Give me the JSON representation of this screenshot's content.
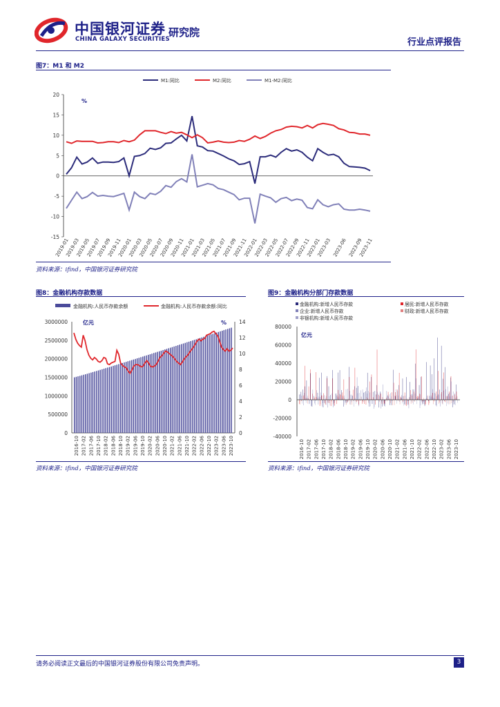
{
  "header": {
    "company_cn": "中国银河证券",
    "company_en": "CHINA GALAXY SECURITIES",
    "institute": "研究院",
    "report_type": "行业点评报告"
  },
  "figures": {
    "fig7": {
      "title": "图7：M1 和 M2",
      "source": "资料来源：ifind，中国银河证券研究院"
    },
    "fig8": {
      "title": "图8：金融机构存款数据",
      "source": "资料来源：ifind，中国银河证券研究院"
    },
    "fig9": {
      "title": "图9：金融机构分部门存款数据",
      "source": "资料来源：ifind，中国银河证券研究院"
    }
  },
  "footer": {
    "disclaimer": "请务必阅读正文最后的中国银河证券股份有限公司免责声明。",
    "page": "3"
  },
  "colors": {
    "navy": "#2b2b7a",
    "red": "#e0262b",
    "purple": "#8080b8",
    "brand": "#1d2088"
  },
  "chart_data": [
    {
      "id": "fig7",
      "type": "line",
      "unit": "%",
      "x": [
        "2019-01",
        "2019-02",
        "2019-03",
        "2019-04",
        "2019-05",
        "2019-06",
        "2019-07",
        "2019-08",
        "2019-09",
        "2019-10",
        "2019-11",
        "2019-12",
        "2020-01",
        "2020-02",
        "2020-03",
        "2020-04",
        "2020-05",
        "2020-06",
        "2020-07",
        "2020-08",
        "2020-09",
        "2020-10",
        "2020-11",
        "2020-12",
        "2021-01",
        "2021-02",
        "2021-03",
        "2021-04",
        "2021-05",
        "2021-06",
        "2021-07",
        "2021-08",
        "2021-09",
        "2021-10",
        "2021-11",
        "2021-12",
        "2022-01",
        "2022-02",
        "2022-03",
        "2022-04",
        "2022-05",
        "2022-06",
        "2022-07",
        "2022-08",
        "2022-09",
        "2022-10",
        "2022-11",
        "2022-12",
        "2023-01",
        "2023-02",
        "2023-03",
        "2023-04",
        "2023-05",
        "2023-06",
        "2023-07",
        "2023-08",
        "2023-09",
        "2023-10",
        "2023-11"
      ],
      "tick_labels": [
        "2019-01",
        "2019-03",
        "2019-05",
        "2019-07",
        "2019-09",
        "2019-11",
        "2020-01",
        "2020-03",
        "2020-05",
        "2020-07",
        "2020-09",
        "2020-11",
        "2021-01",
        "2021-03",
        "2021-05",
        "2021-07",
        "2021-09",
        "2021-11",
        "2022-01",
        "2022-03",
        "2022-05",
        "2022-07",
        "2022-09",
        "2022-11",
        "2023-01",
        "2023-03",
        "2023-06",
        "2023-09",
        "2023-11"
      ],
      "series": [
        {
          "name": "M1:同比",
          "color": "#2b2b7a",
          "values": [
            0.4,
            2.0,
            4.6,
            2.9,
            3.4,
            4.4,
            3.1,
            3.4,
            3.4,
            3.3,
            3.5,
            4.4,
            0.0,
            4.8,
            5.0,
            5.5,
            6.8,
            6.5,
            6.9,
            8.0,
            8.1,
            9.1,
            10.0,
            8.6,
            14.7,
            7.4,
            7.1,
            6.2,
            6.1,
            5.5,
            4.9,
            4.2,
            3.7,
            2.8,
            3.0,
            3.5,
            -1.9,
            4.7,
            4.7,
            5.1,
            4.6,
            5.8,
            6.7,
            6.1,
            6.4,
            5.8,
            4.6,
            3.7,
            6.7,
            5.8,
            5.1,
            5.3,
            4.7,
            3.1,
            2.3,
            2.2,
            2.1,
            1.9,
            1.3
          ]
        },
        {
          "name": "M2:同比",
          "color": "#e0262b",
          "values": [
            8.4,
            8.0,
            8.6,
            8.5,
            8.5,
            8.5,
            8.1,
            8.2,
            8.4,
            8.4,
            8.2,
            8.7,
            8.4,
            8.8,
            10.1,
            11.1,
            11.1,
            11.1,
            10.7,
            10.4,
            10.9,
            10.5,
            10.7,
            10.1,
            9.4,
            10.1,
            9.4,
            8.1,
            8.3,
            8.6,
            8.3,
            8.2,
            8.3,
            8.7,
            8.5,
            9.0,
            9.8,
            9.2,
            9.7,
            10.5,
            11.1,
            11.4,
            12.0,
            12.2,
            12.1,
            11.8,
            12.4,
            11.8,
            12.6,
            12.9,
            12.7,
            12.4,
            11.6,
            11.3,
            10.7,
            10.6,
            10.3,
            10.3,
            10.0
          ]
        },
        {
          "name": "M1-M2:同比",
          "color": "#8080b8",
          "values": [
            -8.0,
            -6.0,
            -4.0,
            -5.6,
            -5.1,
            -4.1,
            -5.0,
            -4.8,
            -5.0,
            -5.1,
            -4.7,
            -4.3,
            -8.4,
            -4.0,
            -5.1,
            -5.6,
            -4.3,
            -4.6,
            -3.8,
            -2.4,
            -2.8,
            -1.4,
            -0.7,
            -1.5,
            5.3,
            -2.7,
            -2.3,
            -1.9,
            -2.2,
            -3.1,
            -3.4,
            -4.0,
            -4.6,
            -5.9,
            -5.5,
            -5.5,
            -11.7,
            -4.5,
            -5.0,
            -5.4,
            -6.5,
            -5.6,
            -5.3,
            -6.1,
            -5.7,
            -6.0,
            -7.8,
            -8.1,
            -5.9,
            -7.1,
            -7.6,
            -7.1,
            -6.9,
            -8.2,
            -8.4,
            -8.4,
            -8.2,
            -8.4,
            -8.7
          ]
        }
      ],
      "ylim": [
        -15,
        20
      ],
      "yticks": [
        -15,
        -10,
        -5,
        0,
        5,
        10,
        15,
        20
      ]
    },
    {
      "id": "fig8",
      "type": "bar+line",
      "left_unit": "亿元",
      "right_unit": "%",
      "bar_series": {
        "name": "金融机构:人民币存款余额",
        "color": "#4a4a9a",
        "start": 1500000,
        "end": 2840000,
        "count": 86
      },
      "line_series": {
        "name": "金融机构:人民币存款余额:同比",
        "color": "#e0262b",
        "values": [
          12.6,
          11.8,
          11.3,
          11.0,
          10.8,
          12.3,
          11.6,
          10.5,
          9.8,
          9.4,
          9.2,
          9.5,
          9.3,
          9.0,
          8.9,
          9.1,
          9.5,
          9.4,
          8.7,
          8.6,
          8.8,
          8.9,
          9.0,
          10.4,
          9.9,
          8.8,
          8.5,
          8.3,
          8.2,
          7.8,
          7.5,
          7.9,
          8.4,
          8.6,
          8.6,
          8.5,
          8.3,
          8.4,
          8.8,
          9.1,
          8.8,
          8.4,
          8.3,
          8.4,
          8.6,
          9.0,
          9.5,
          9.7,
          10.0,
          10.3,
          10.2,
          10.0,
          9.8,
          9.6,
          9.3,
          9.0,
          8.8,
          8.6,
          8.9,
          9.3,
          9.6,
          9.8,
          10.2,
          10.5,
          10.8,
          11.2,
          11.6,
          11.8,
          11.6,
          11.8,
          11.9,
          12.3,
          12.4,
          12.5,
          12.7,
          12.8,
          12.5,
          12.2,
          11.5,
          10.8,
          10.5,
          10.3,
          10.6,
          10.3,
          10.4,
          10.7
        ]
      },
      "left_ylim": [
        0,
        3000000
      ],
      "left_yticks": [
        0,
        500000,
        1000000,
        1500000,
        2000000,
        2500000,
        3000000
      ],
      "right_ylim": [
        0,
        14
      ],
      "right_yticks": [
        0,
        2,
        4,
        6,
        8,
        10,
        12,
        14
      ],
      "tick_labels": [
        "2016-10",
        "2017-02",
        "2017-06",
        "2017-10",
        "2018-02",
        "2018-06",
        "2018-10",
        "2019-02",
        "2019-06",
        "2019-10",
        "2020-02",
        "2020-06",
        "2020-10",
        "2021-02",
        "2021-06",
        "2021-10",
        "2022-02",
        "2022-06",
        "2022-10",
        "2023-02",
        "2023-06",
        "2023-10"
      ]
    },
    {
      "id": "fig9",
      "type": "bar",
      "unit": "亿元",
      "series": [
        {
          "name": "金融机构:新增人民币存款",
          "color": "#2b2b7a"
        },
        {
          "name": "居民:新增人民币存款",
          "color": "#e0262b"
        },
        {
          "name": "企业:新增人民币存款",
          "color": "#8080b8"
        },
        {
          "name": "财政:新增人民币存款",
          "color": "#e08080"
        },
        {
          "name": "非银机构:新增人民币存款",
          "color": "#a0a0c8"
        }
      ],
      "ylim": [
        -40000,
        80000
      ],
      "yticks": [
        -40000,
        -20000,
        0,
        20000,
        40000,
        60000,
        80000
      ],
      "tick_labels": [
        "2016-10",
        "2017-02",
        "2017-06",
        "2017-10",
        "2018-02",
        "2018-06",
        "2018-10",
        "2019-02",
        "2019-06",
        "2019-10",
        "2020-02",
        "2020-06",
        "2020-10",
        "2021-02",
        "2021-06",
        "2021-10",
        "2022-02",
        "2022-06",
        "2022-10",
        "2023-02",
        "2023-06",
        "2023-10"
      ]
    }
  ]
}
